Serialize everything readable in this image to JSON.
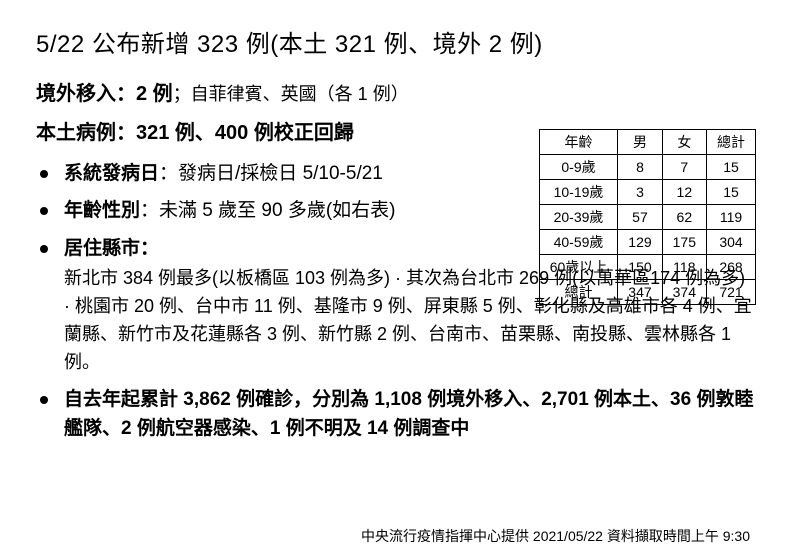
{
  "title": "5/22 公布新增 323 例(本土 321 例、境外 2 例)",
  "imported": {
    "label": "境外移入：2 例",
    "note": "；自菲律賓、英國（各 1 例）"
  },
  "local": {
    "label": "本土病例：321 例、400 例校正回歸"
  },
  "bullets": {
    "onset": {
      "label": "系統發病日",
      "value": "：發病日/採檢日 5/10-5/21"
    },
    "age": {
      "label": "年齡性別",
      "value": "：未滿 5 歲至 90 多歲(如右表)"
    },
    "county": {
      "label": "居住縣市：",
      "detail": "新北市 384 例最多(以板橋區 103 例為多) · 其次為台北市 269 例(以萬華區174 例為多) · 桃園市 20 例、台中市 11 例、基隆市 9 例、屏東縣 5 例、彰化縣及高雄市各 4 例、宜蘭縣、新竹市及花蓮縣各 3 例、新竹縣 2 例、台南市、苗栗縣、南投縣、雲林縣各 1 例。"
    },
    "cumulative": "自去年起累計 3,862 例確診，分別為 1,108 例境外移入、2,701 例本土、36 例敦睦艦隊、2 例航空器感染、1 例不明及 14 例調查中"
  },
  "age_table": {
    "headers": [
      "年齡",
      "男",
      "女",
      "總計"
    ],
    "rows": [
      [
        "0-9歲",
        "8",
        "7",
        "15"
      ],
      [
        "10-19歲",
        "3",
        "12",
        "15"
      ],
      [
        "20-39歲",
        "57",
        "62",
        "119"
      ],
      [
        "40-59歲",
        "129",
        "175",
        "304"
      ],
      [
        "60歲以上",
        "150",
        "118",
        "268"
      ],
      [
        "總計",
        "347",
        "374",
        "721"
      ]
    ]
  },
  "footer": "中央流行疫情指揮中心提供  2021/05/22  資料擷取時間上午 9:30"
}
